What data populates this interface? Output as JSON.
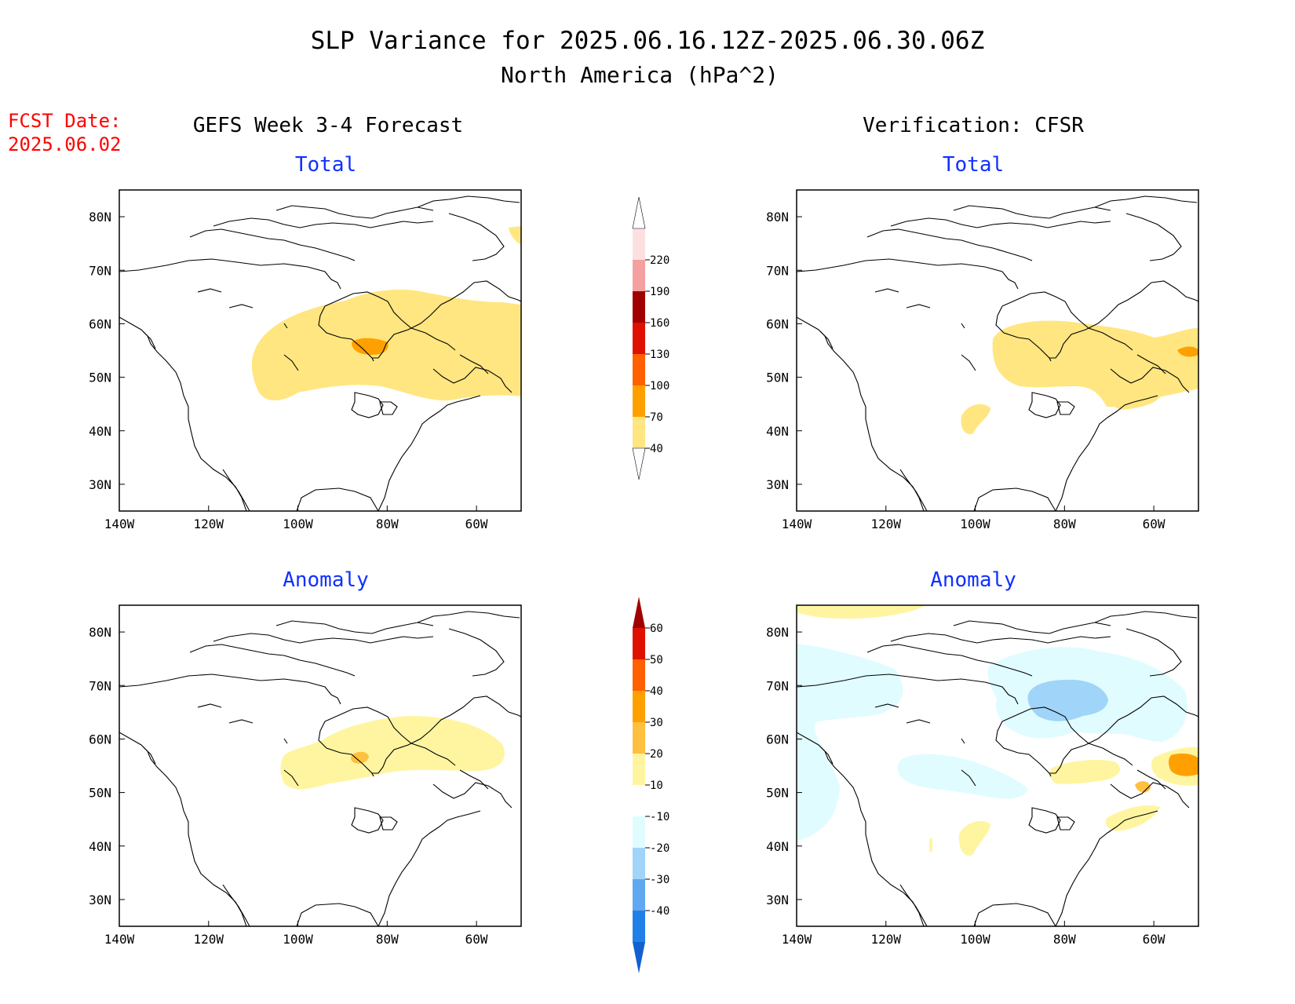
{
  "title": {
    "line1": "SLP Variance for 2025.06.16.12Z-2025.06.30.06Z",
    "line2": "North America (hPa^2)"
  },
  "fcst_date": {
    "label": "FCST Date:",
    "value": "2025.06.02"
  },
  "columns": {
    "left": "GEFS Week 3-4 Forecast",
    "right": "Verification: CFSR"
  },
  "panels": [
    {
      "id": "fcst-total",
      "subtitle": "Total"
    },
    {
      "id": "verif-total",
      "subtitle": "Total"
    },
    {
      "id": "fcst-anomaly",
      "subtitle": "Anomaly"
    },
    {
      "id": "verif-anomaly",
      "subtitle": "Anomaly"
    }
  ],
  "axes": {
    "lat_ticks": [
      "80N",
      "70N",
      "60N",
      "50N",
      "40N",
      "30N"
    ],
    "lat_values": [
      80,
      70,
      60,
      50,
      40,
      30
    ],
    "lon_ticks": [
      "140W",
      "120W",
      "100W",
      "80W",
      "60W"
    ],
    "lon_values": [
      -140,
      -120,
      -100,
      -80,
      -60
    ],
    "lon_range": [
      -140,
      -50
    ],
    "lat_range": [
      25,
      85
    ]
  },
  "colorbars": {
    "total": {
      "levels": [
        "40",
        "70",
        "100",
        "130",
        "160",
        "190",
        "220"
      ],
      "colors": [
        "#ffe680",
        "#ffa000",
        "#ff6000",
        "#e01000",
        "#a00000",
        "#f4a0a0",
        "#fce0e0"
      ]
    },
    "anomaly": {
      "levels": [
        "60",
        "50",
        "40",
        "30",
        "20",
        "10",
        "-10",
        "-20",
        "-30",
        "-40"
      ],
      "colors": [
        "#a00000",
        "#e01000",
        "#ff6000",
        "#ffa000",
        "#ffc040",
        "#fff5a0",
        "#ffffff",
        "#e0fcff",
        "#a0d4f8",
        "#60a8f0",
        "#2080e8",
        "#1060d0"
      ]
    }
  },
  "colors": {
    "title": "#000000",
    "fcst_date": "#ff0000",
    "subtitle": "#1030ff"
  }
}
